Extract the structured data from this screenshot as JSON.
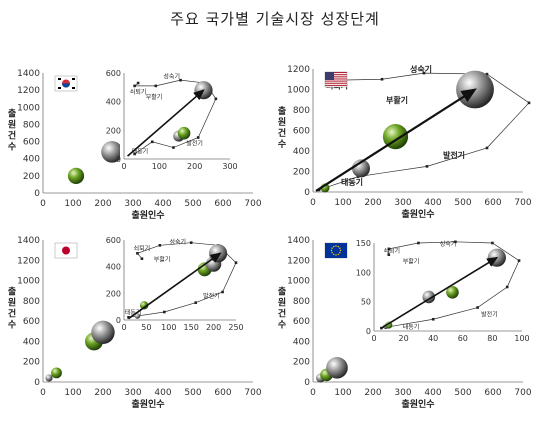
{
  "title": "주요 국가별 기술시장 성장단계",
  "chart_data": [
    {
      "type": "scatter",
      "flag": "KR",
      "xlabel": "출원인수",
      "ylabel": "출원건수",
      "xlim": [
        0,
        700
      ],
      "ylim": [
        0,
        1400
      ],
      "xticks": [
        0,
        100,
        200,
        300,
        400,
        500,
        600,
        700
      ],
      "yticks": [
        0,
        200,
        400,
        600,
        800,
        1000,
        1200,
        1400
      ],
      "bubbles": [
        {
          "x": 110,
          "y": 200,
          "r": 0.9,
          "color": "green"
        },
        {
          "x": 230,
          "y": 480,
          "r": 1.2,
          "color": "gray"
        }
      ],
      "inset": {
        "xlim": [
          0,
          300
        ],
        "ylim": [
          0,
          600
        ],
        "xticks": [
          0,
          100,
          200,
          300
        ],
        "yticks": [
          0,
          200,
          400,
          600
        ],
        "bubbles": [
          {
            "x": 155,
            "y": 160,
            "r": 0.8,
            "color": "gray"
          },
          {
            "x": 170,
            "y": 180,
            "r": 0.9,
            "color": "green"
          },
          {
            "x": 225,
            "y": 480,
            "r": 1.3,
            "color": "gray"
          }
        ],
        "arrow": [
          [
            10,
            20
          ],
          [
            225,
            480
          ]
        ],
        "loop": [
          [
            30,
            35
          ],
          [
            80,
            120
          ],
          [
            140,
            80
          ],
          [
            210,
            150
          ],
          [
            260,
            420
          ],
          [
            230,
            530
          ],
          [
            160,
            550
          ],
          [
            90,
            510
          ],
          [
            30,
            510
          ],
          [
            40,
            530
          ]
        ],
        "labels": [
          {
            "text": "태동기",
            "x": 45,
            "y": 38
          },
          {
            "text": "발전기",
            "x": 200,
            "y": 95
          },
          {
            "text": "성숙기",
            "x": 135,
            "y": 560
          },
          {
            "text": "쇠퇴기",
            "x": 40,
            "y": 455
          },
          {
            "text": "부활기",
            "x": 85,
            "y": 420
          }
        ],
        "small": true
      }
    },
    {
      "type": "scatter",
      "flag": "US",
      "xlabel": "출원인수",
      "ylabel": "출원건수",
      "xlim": [
        0,
        700
      ],
      "ylim": [
        0,
        1200
      ],
      "xticks": [
        0,
        100,
        200,
        300,
        400,
        500,
        600,
        700
      ],
      "yticks": [
        0,
        200,
        400,
        600,
        800,
        1000,
        1200
      ],
      "bubbles": [
        {
          "x": 40,
          "y": 40,
          "r": 0.5,
          "color": "green"
        },
        {
          "x": 160,
          "y": 230,
          "r": 1.0,
          "color": "gray"
        },
        {
          "x": 275,
          "y": 540,
          "r": 1.4,
          "color": "green"
        },
        {
          "x": 540,
          "y": 1000,
          "r": 2.1,
          "color": "gray"
        }
      ],
      "arrow": [
        [
          10,
          10
        ],
        [
          540,
          1000
        ]
      ],
      "loop": [
        [
          20,
          20
        ],
        [
          150,
          150
        ],
        [
          380,
          250
        ],
        [
          580,
          430
        ],
        [
          720,
          870
        ],
        [
          580,
          1150
        ],
        [
          370,
          1160
        ],
        [
          230,
          1100
        ],
        [
          70,
          1090
        ],
        [
          60,
          1050
        ]
      ],
      "labels": [
        {
          "text": "태동기",
          "x": 130,
          "y": 70
        },
        {
          "text": "발전기",
          "x": 470,
          "y": 330
        },
        {
          "text": "성숙기",
          "x": 360,
          "y": 1170
        },
        {
          "text": "쇠퇴기",
          "x": 80,
          "y": 1010
        },
        {
          "text": "부활기",
          "x": 280,
          "y": 870
        }
      ]
    },
    {
      "type": "scatter",
      "flag": "JP",
      "xlabel": "출원인수",
      "ylabel": "출원건수",
      "xlim": [
        0,
        700
      ],
      "ylim": [
        0,
        1400
      ],
      "xticks": [
        0,
        100,
        200,
        300,
        400,
        500,
        600,
        700
      ],
      "yticks": [
        0,
        200,
        400,
        600,
        800,
        1000,
        1200,
        1400
      ],
      "bubbles": [
        {
          "x": 20,
          "y": 40,
          "r": 0.4,
          "color": "gray"
        },
        {
          "x": 45,
          "y": 90,
          "r": 0.6,
          "color": "green"
        },
        {
          "x": 170,
          "y": 400,
          "r": 1.0,
          "color": "green"
        },
        {
          "x": 200,
          "y": 490,
          "r": 1.3,
          "color": "gray"
        }
      ],
      "inset": {
        "xlim": [
          0,
          250
        ],
        "ylim": [
          0,
          600
        ],
        "xticks": [
          0,
          50,
          100,
          150,
          200,
          250
        ],
        "yticks": [
          0,
          200,
          400,
          600
        ],
        "bubbles": [
          {
            "x": 30,
            "y": 30,
            "r": 0.4,
            "color": "gray"
          },
          {
            "x": 45,
            "y": 110,
            "r": 0.6,
            "color": "green"
          },
          {
            "x": 180,
            "y": 380,
            "r": 1.0,
            "color": "green"
          },
          {
            "x": 200,
            "y": 420,
            "r": 1.1,
            "color": "gray"
          },
          {
            "x": 210,
            "y": 500,
            "r": 1.3,
            "color": "gray"
          }
        ],
        "arrow": [
          [
            10,
            10
          ],
          [
            215,
            500
          ]
        ],
        "loop": [
          [
            10,
            20
          ],
          [
            90,
            60
          ],
          [
            160,
            130
          ],
          [
            220,
            210
          ],
          [
            250,
            430
          ],
          [
            210,
            560
          ],
          [
            150,
            580
          ],
          [
            80,
            560
          ],
          [
            30,
            500
          ],
          [
            40,
            460
          ]
        ],
        "labels": [
          {
            "text": "태동기",
            "x": 20,
            "y": 40
          },
          {
            "text": "발전기",
            "x": 195,
            "y": 165
          },
          {
            "text": "성숙기",
            "x": 120,
            "y": 570
          },
          {
            "text": "쇠퇴기",
            "x": 40,
            "y": 520
          },
          {
            "text": "부활기",
            "x": 85,
            "y": 440
          }
        ],
        "small": true
      }
    },
    {
      "type": "scatter",
      "flag": "EU",
      "xlabel": "출원인수",
      "ylabel": "출원건수",
      "xlim": [
        0,
        700
      ],
      "ylim": [
        0,
        1400
      ],
      "xticks": [
        0,
        100,
        200,
        300,
        400,
        500,
        600,
        700
      ],
      "yticks": [
        0,
        200,
        400,
        600,
        800,
        1000,
        1200,
        1400
      ],
      "bubbles": [
        {
          "x": 25,
          "y": 40,
          "r": 0.5,
          "color": "gray"
        },
        {
          "x": 45,
          "y": 70,
          "r": 0.7,
          "color": "green"
        },
        {
          "x": 80,
          "y": 140,
          "r": 1.2,
          "color": "gray"
        }
      ],
      "inset": {
        "xlim": [
          0,
          100
        ],
        "ylim": [
          0,
          150
        ],
        "xticks": [
          0,
          20,
          40,
          60,
          80,
          100
        ],
        "yticks": [
          0,
          50,
          100,
          150
        ],
        "bubbles": [
          {
            "x": 8,
            "y": 8,
            "r": 0.4,
            "color": "gray"
          },
          {
            "x": 10,
            "y": 10,
            "r": 0.5,
            "color": "green"
          },
          {
            "x": 37,
            "y": 58,
            "r": 0.9,
            "color": "gray"
          },
          {
            "x": 53,
            "y": 66,
            "r": 0.9,
            "color": "green"
          },
          {
            "x": 83,
            "y": 125,
            "r": 1.3,
            "color": "gray"
          }
        ],
        "arrow": [
          [
            5,
            5
          ],
          [
            83,
            125
          ]
        ],
        "loop": [
          [
            5,
            5
          ],
          [
            40,
            20
          ],
          [
            70,
            40
          ],
          [
            90,
            75
          ],
          [
            98,
            120
          ],
          [
            80,
            150
          ],
          [
            55,
            152
          ],
          [
            30,
            150
          ],
          [
            10,
            140
          ],
          [
            10,
            130
          ]
        ],
        "labels": [
          {
            "text": "태동기",
            "x": 25,
            "y": 3
          },
          {
            "text": "발전기",
            "x": 78,
            "y": 25
          },
          {
            "text": "성숙기",
            "x": 50,
            "y": 145
          },
          {
            "text": "쇠퇴기",
            "x": 12,
            "y": 133
          },
          {
            "text": "부활기",
            "x": 25,
            "y": 115
          }
        ],
        "small": true
      }
    }
  ]
}
